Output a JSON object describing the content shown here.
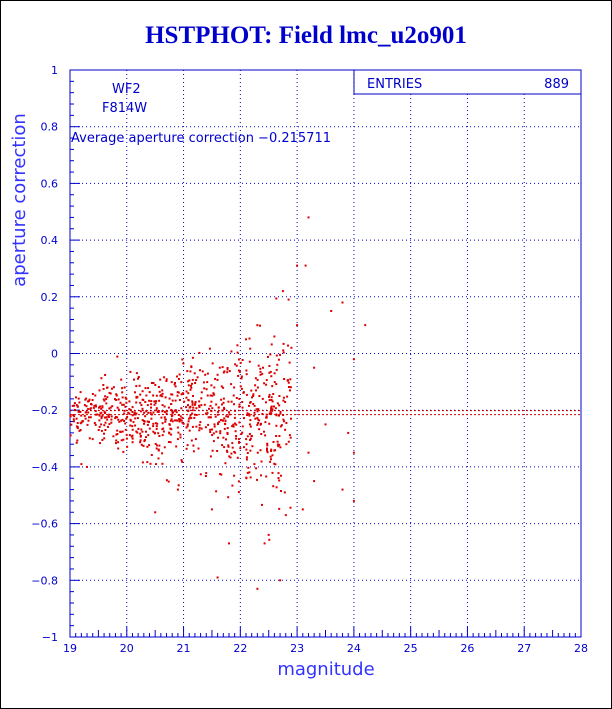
{
  "chart_data": {
    "type": "scatter",
    "title": "HSTPHOT: Field lmc_u2o901",
    "xlabel": "magnitude",
    "ylabel": "aperture correction",
    "xlim": [
      19,
      28
    ],
    "ylim": [
      -1,
      1
    ],
    "xticks": [
      "19",
      "20",
      "21",
      "22",
      "23",
      "24",
      "25",
      "26",
      "27",
      "28"
    ],
    "yticks": [
      "−1",
      "−0.8",
      "−0.6",
      "−0.4",
      "−0.2",
      "0",
      "0.2",
      "0.4",
      "0.6",
      "0.8",
      "1"
    ],
    "grid": true,
    "annotations": {
      "chip": "WF2",
      "filter": "F814W",
      "average_text": "Average aperture correction −0.215711"
    },
    "stats": {
      "entries_label": "ENTRIES",
      "entries_value": "889"
    },
    "average_line": -0.2157,
    "outliers": [
      [
        23.2,
        0.48
      ],
      [
        23.0,
        0.31
      ],
      [
        23.15,
        0.31
      ],
      [
        22.75,
        0.22
      ],
      [
        22.85,
        0.19
      ],
      [
        23.8,
        0.18
      ],
      [
        23.6,
        0.15
      ],
      [
        24.2,
        0.1
      ],
      [
        23.0,
        0.1
      ],
      [
        22.3,
        0.1
      ],
      [
        22.1,
        0.05
      ],
      [
        22.9,
        0.02
      ],
      [
        22.6,
        0.06
      ],
      [
        24.0,
        -0.02
      ],
      [
        23.3,
        -0.05
      ],
      [
        22.4,
        -0.05
      ],
      [
        23.5,
        -0.25
      ],
      [
        23.9,
        -0.28
      ],
      [
        23.2,
        -0.35
      ],
      [
        24.0,
        -0.35
      ],
      [
        23.3,
        -0.45
      ],
      [
        23.8,
        -0.48
      ],
      [
        24.0,
        -0.52
      ],
      [
        23.1,
        -0.55
      ],
      [
        22.5,
        -0.64
      ],
      [
        22.7,
        -0.8
      ],
      [
        22.3,
        -0.83
      ],
      [
        21.8,
        -0.67
      ],
      [
        21.5,
        -0.55
      ],
      [
        21.6,
        -0.79
      ],
      [
        20.5,
        -0.56
      ],
      [
        20.9,
        -0.48
      ],
      [
        19.3,
        -0.4
      ],
      [
        19.2,
        -0.39
      ],
      [
        22.8,
        -0.57
      ]
    ],
    "points": []
  }
}
